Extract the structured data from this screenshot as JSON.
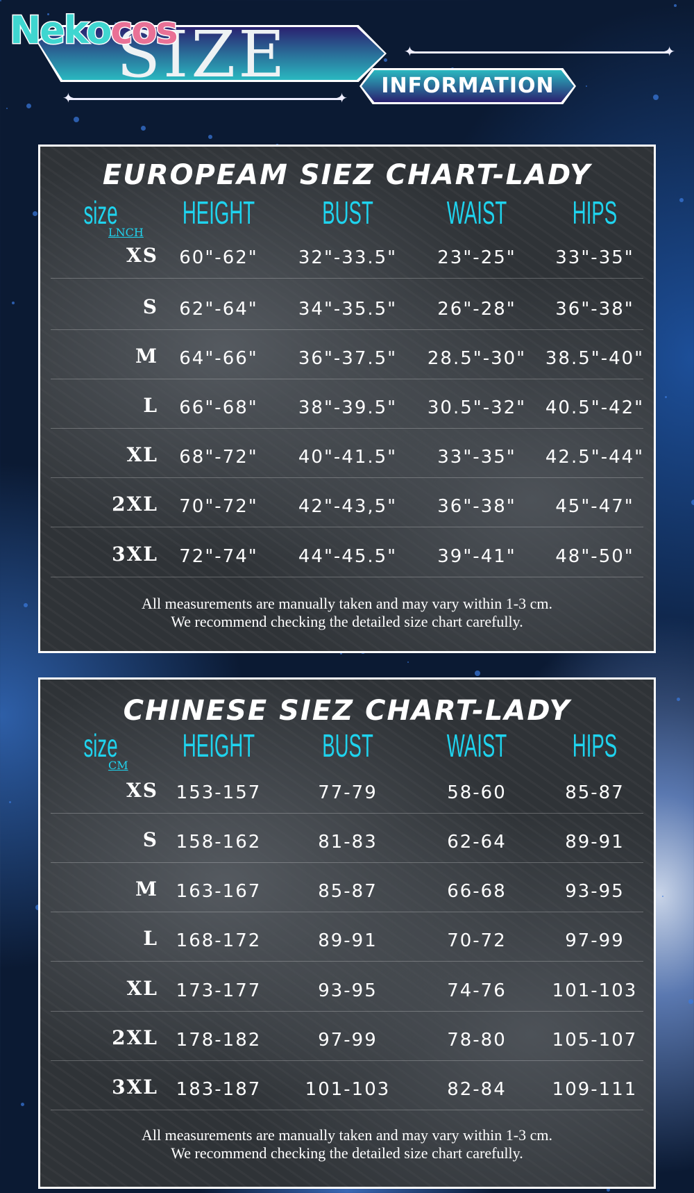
{
  "header": {
    "brand_a": "Neko",
    "brand_b": "cos",
    "size_title": "SIZE",
    "info_label": "INFORMATION"
  },
  "colors": {
    "accent": "#1fd3ee",
    "brand_teal": "#3fd6d0",
    "brand_pink": "#e97196",
    "banner_purple": "#2a2170"
  },
  "charts": [
    {
      "title": "Europeam Siez Chart-Lady",
      "unit": "LNCH",
      "columns": [
        "size",
        "HEIGHT",
        "BUST",
        "WAIST",
        "HIPS"
      ],
      "rows": [
        [
          "XS",
          "60\"-62\"",
          "32\"-33.5\"",
          "23\"-25\"",
          "33\"-35\""
        ],
        [
          "S",
          "62\"-64\"",
          "34\"-35.5\"",
          "26\"-28\"",
          "36\"-38\""
        ],
        [
          "M",
          "64\"-66\"",
          "36\"-37.5\"",
          "28.5\"-30\"",
          "38.5\"-40\""
        ],
        [
          "L",
          "66\"-68\"",
          "38\"-39.5\"",
          "30.5\"-32\"",
          "40.5\"-42\""
        ],
        [
          "XL",
          "68\"-72\"",
          "40\"-41.5\"",
          "33\"-35\"",
          "42.5\"-44\""
        ],
        [
          "2XL",
          "70\"-72\"",
          "42\"-43,5\"",
          "36\"-38\"",
          "45\"-47\""
        ],
        [
          "3XL",
          "72\"-74\"",
          "44\"-45.5\"",
          "39\"-41\"",
          "48\"-50\""
        ]
      ],
      "note1": "All measurements are manually taken and may vary within 1-3 cm.",
      "note2": "We recommend checking the detailed size chart carefully."
    },
    {
      "title": "Chinese Siez Chart-Lady",
      "unit": "CM",
      "columns": [
        "size",
        "HEIGHT",
        "BUST",
        "WAIST",
        "HIPS"
      ],
      "rows": [
        [
          "XS",
          "153-157",
          "77-79",
          "58-60",
          "85-87"
        ],
        [
          "S",
          "158-162",
          "81-83",
          "62-64",
          "89-91"
        ],
        [
          "M",
          "163-167",
          "85-87",
          "66-68",
          "93-95"
        ],
        [
          "L",
          "168-172",
          "89-91",
          "70-72",
          "97-99"
        ],
        [
          "XL",
          "173-177",
          "93-95",
          "74-76",
          "101-103"
        ],
        [
          "2XL",
          "178-182",
          "97-99",
          "78-80",
          "105-107"
        ],
        [
          "3XL",
          "183-187",
          "101-103",
          "82-84",
          "109-111"
        ]
      ],
      "note1": "All measurements are manually taken and may vary within 1-3 cm.",
      "note2": "We recommend checking the detailed size chart carefully."
    }
  ]
}
